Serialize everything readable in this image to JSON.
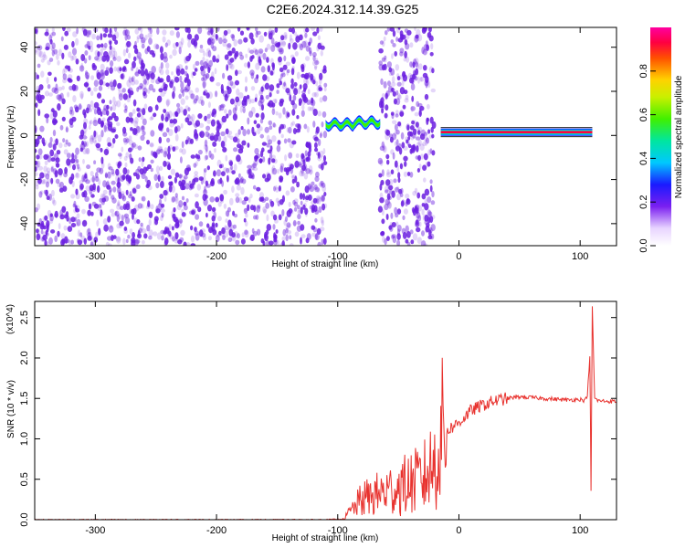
{
  "title": "C2E6.2024.312.14.39.G25",
  "colors": {
    "noise": "#6b1ee0",
    "snr_line": "#e8322e",
    "axis": "#000000"
  },
  "chart_data": [
    {
      "type": "heatmap",
      "title": "C2E6.2024.312.14.39.G25",
      "xlabel": "Height of straight line (km)",
      "ylabel": "Frequency (Hz)",
      "xlim": [
        -350,
        130
      ],
      "ylim": [
        -50,
        49
      ],
      "x_ticks": [
        -300,
        -200,
        -100,
        0,
        100
      ],
      "y_ticks": [
        -40,
        -20,
        0,
        20,
        40
      ],
      "colorbar": {
        "label": "Normalized spectral amplitude",
        "range": [
          0.0,
          1.0
        ],
        "ticks": [
          0.0,
          0.2,
          0.4,
          0.6,
          0.8
        ],
        "colormap": "rainbow (magenta → red → yellow → green → cyan → blue → purple → white)"
      },
      "features": [
        {
          "x_range": [
            -350,
            -110
          ],
          "description": "scattered low-amplitude noise"
        },
        {
          "x_range": [
            -110,
            -65
          ],
          "frequency_hz": 5,
          "amplitude": 0.6
        },
        {
          "x_range": [
            -65,
            -20
          ],
          "description": "scattered low-amplitude noise"
        },
        {
          "x_range": [
            -15,
            110
          ],
          "frequency_hz": 1.5,
          "amplitude": 1.0
        }
      ]
    },
    {
      "type": "line",
      "xlabel": "Height of straight line (km)",
      "ylabel": "SNR (10 * v/v)",
      "y_multiplier": "(x10^4)",
      "xlim": [
        -350,
        130
      ],
      "ylim": [
        0.0,
        2.7
      ],
      "x_ticks": [
        -300,
        -200,
        -100,
        0,
        100
      ],
      "y_ticks": [
        "0.0",
        "0.5",
        "1.0",
        "1.5",
        "2.0",
        "2.5"
      ],
      "series": [
        {
          "x": [
            -350,
            -300,
            -250,
            -200,
            -150,
            -110,
            -95,
            -90,
            -80,
            -70,
            -60,
            -50,
            -40,
            -30,
            -20,
            -15,
            -10,
            0,
            10,
            20,
            30,
            40,
            50,
            60,
            70,
            80,
            90,
            100,
            104,
            106,
            108,
            109,
            110,
            112,
            115,
            130
          ],
          "y": [
            0.0,
            0.0,
            0.0,
            0.0,
            0.0,
            0.0,
            0.01,
            0.1,
            0.25,
            0.3,
            0.35,
            0.4,
            0.45,
            0.5,
            0.7,
            1.05,
            1.1,
            1.2,
            1.35,
            1.42,
            1.47,
            1.5,
            1.52,
            1.51,
            1.5,
            1.49,
            1.48,
            1.49,
            1.47,
            1.55,
            2.0,
            0.35,
            2.65,
            1.5,
            1.47,
            1.46
          ]
        }
      ]
    }
  ]
}
